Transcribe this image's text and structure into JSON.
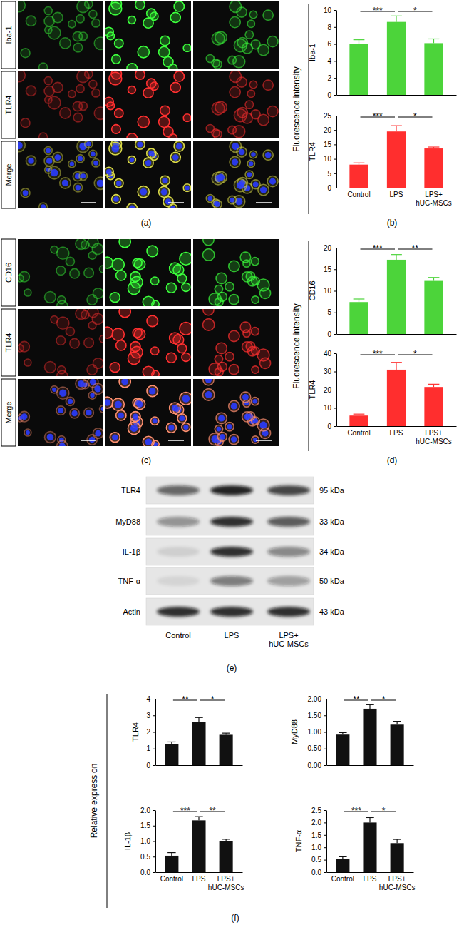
{
  "chart_data": [
    {
      "type": "bar",
      "y_label": "Iba-1",
      "categories": [
        "Control",
        "LPS",
        "LPS+ hUC-MSCs"
      ],
      "values": [
        6.0,
        8.6,
        6.1
      ],
      "errors": [
        0.5,
        0.7,
        0.5
      ],
      "color": "#4cd43a",
      "ylim": [
        0,
        10
      ],
      "yticks": [
        0,
        2,
        4,
        6,
        8,
        10
      ],
      "tick_labels": "y",
      "significance": [
        {
          "pair": [
            "Control",
            "LPS"
          ],
          "label": "***"
        },
        {
          "pair": [
            "LPS",
            "LPS+ hUC-MSCs"
          ],
          "label": "*"
        }
      ]
    },
    {
      "type": "bar",
      "y_label": "TLR4",
      "categories": [
        "Control",
        "LPS",
        "LPS+ hUC-MSCs"
      ],
      "values": [
        8.0,
        19.5,
        13.6
      ],
      "errors": [
        0.6,
        2.0,
        0.5
      ],
      "color": "#ff2e2e",
      "ylim": [
        0,
        25
      ],
      "yticks": [
        0,
        5,
        10,
        15,
        20,
        25
      ],
      "significance": [
        {
          "pair": [
            "Control",
            "LPS"
          ],
          "label": "***"
        },
        {
          "pair": [
            "LPS",
            "LPS+ hUC-MSCs"
          ],
          "label": "*"
        }
      ]
    },
    {
      "type": "bar",
      "y_label": "CD16",
      "categories": [
        "Control",
        "LPS",
        "LPS+ hUC-MSCs"
      ],
      "values": [
        7.4,
        17.2,
        12.3
      ],
      "errors": [
        0.7,
        1.2,
        0.8
      ],
      "color": "#4cd43a",
      "ylim": [
        0,
        20
      ],
      "yticks": [
        0,
        5,
        10,
        15,
        20
      ],
      "tick_labels": "y",
      "significance": [
        {
          "pair": [
            "Control",
            "LPS"
          ],
          "label": "***"
        },
        {
          "pair": [
            "LPS",
            "LPS+ hUC-MSCs"
          ],
          "label": "**"
        }
      ]
    },
    {
      "type": "bar",
      "y_label": "TLR4",
      "categories": [
        "Control",
        "LPS",
        "LPS+ hUC-MSCs"
      ],
      "values": [
        5.8,
        31.0,
        21.5
      ],
      "errors": [
        0.8,
        4.0,
        1.5
      ],
      "color": "#ff2e2e",
      "ylim": [
        0,
        40
      ],
      "yticks": [
        0,
        10,
        20,
        30,
        40
      ],
      "significance": [
        {
          "pair": [
            "Control",
            "LPS"
          ],
          "label": "***"
        },
        {
          "pair": [
            "LPS",
            "LPS+ hUC-MSCs"
          ],
          "label": "*"
        }
      ]
    },
    {
      "type": "bar",
      "y_label": "TLR4",
      "categories": [
        "Control",
        "LPS",
        "LPS+ hUC-MSCs"
      ],
      "values": [
        1.28,
        2.62,
        1.83
      ],
      "errors": [
        0.12,
        0.25,
        0.1
      ],
      "color": "#111111",
      "ylim": [
        0,
        4
      ],
      "yticks": [
        0,
        1,
        2,
        3,
        4
      ],
      "tick_labels": "y",
      "significance": [
        {
          "pair": [
            "Control",
            "LPS"
          ],
          "label": "**"
        },
        {
          "pair": [
            "LPS",
            "LPS+ hUC-MSCs"
          ],
          "label": "*"
        }
      ]
    },
    {
      "type": "bar",
      "y_label": "MyD88",
      "categories": [
        "Control",
        "LPS",
        "LPS+ hUC-MSCs"
      ],
      "values": [
        0.92,
        1.7,
        1.22
      ],
      "errors": [
        0.06,
        0.12,
        0.1
      ],
      "color": "#111111",
      "ylim": [
        0,
        2
      ],
      "yticks": [
        {
          "value": 0,
          "label": "0.00"
        },
        {
          "value": 0.5,
          "label": "0.50"
        },
        {
          "value": 1,
          "label": "1.00"
        },
        {
          "value": 1.5,
          "label": "1.50"
        },
        {
          "value": 2,
          "label": "2.00"
        }
      ],
      "tick_labels": "y",
      "significance": [
        {
          "pair": [
            "Control",
            "LPS"
          ],
          "label": "**"
        },
        {
          "pair": [
            "LPS",
            "LPS+ hUC-MSCs"
          ],
          "label": "*"
        }
      ]
    },
    {
      "type": "bar",
      "y_label": "IL-1β",
      "categories": [
        "Control",
        "LPS",
        "LPS+ hUC-MSCs"
      ],
      "values": [
        0.53,
        1.67,
        1.0
      ],
      "errors": [
        0.1,
        0.12,
        0.06
      ],
      "color": "#111111",
      "ylim": [
        0,
        2
      ],
      "yticks": [
        {
          "value": 0,
          "label": "0.0"
        },
        {
          "value": 0.5,
          "label": "0.5"
        },
        {
          "value": 1,
          "label": "1.0"
        },
        {
          "value": 1.5,
          "label": "1.5"
        },
        {
          "value": 2,
          "label": "2.0"
        }
      ],
      "significance": [
        {
          "pair": [
            "Control",
            "LPS"
          ],
          "label": "***"
        },
        {
          "pair": [
            "LPS",
            "LPS+ hUC-MSCs"
          ],
          "label": "**"
        }
      ]
    },
    {
      "type": "bar",
      "y_label": "TNF-α",
      "categories": [
        "Control",
        "LPS",
        "LPS+ hUC-MSCs"
      ],
      "values": [
        0.52,
        2.0,
        1.17
      ],
      "errors": [
        0.1,
        0.2,
        0.15
      ],
      "color": "#111111",
      "ylim": [
        0,
        2.5
      ],
      "yticks": [
        {
          "value": 0,
          "label": "0.0"
        },
        {
          "value": 0.5,
          "label": "0.5"
        },
        {
          "value": 1,
          "label": "1.0"
        },
        {
          "value": 1.5,
          "label": "1.5"
        },
        {
          "value": 2,
          "label": "2.0"
        },
        {
          "value": 2.5,
          "label": "2.5"
        }
      ],
      "significance": [
        {
          "pair": [
            "Control",
            "LPS"
          ],
          "label": "***"
        },
        {
          "pair": [
            "LPS",
            "LPS+ hUC-MSCs"
          ],
          "label": "*"
        }
      ]
    }
  ],
  "figure": {
    "panel_labels": [
      "(a)",
      "(b)",
      "(c)",
      "(d)",
      "(e)",
      "(f)"
    ],
    "shared_y_labels": [
      "Fluorescence intensity",
      "Fluorescence intensity",
      "Relative expression"
    ],
    "micrographs": [
      {
        "rows": [
          "Iba-1",
          "TLR4",
          "Merge"
        ]
      },
      {
        "rows": [
          "CD16",
          "TLR4",
          "Merge"
        ]
      }
    ],
    "blot": {
      "rows": [
        {
          "name": "TLR4",
          "size": "95 kDa"
        },
        {
          "name": "MyD88",
          "size": "33 kDa"
        },
        {
          "name": "IL-1β",
          "size": "34 kDa"
        },
        {
          "name": "TNF-α",
          "size": "50 kDa"
        },
        {
          "name": "Actin",
          "size": "43 kDa"
        }
      ],
      "columns": [
        "Control",
        "LPS",
        "LPS+ hUC-MSCs"
      ]
    }
  }
}
